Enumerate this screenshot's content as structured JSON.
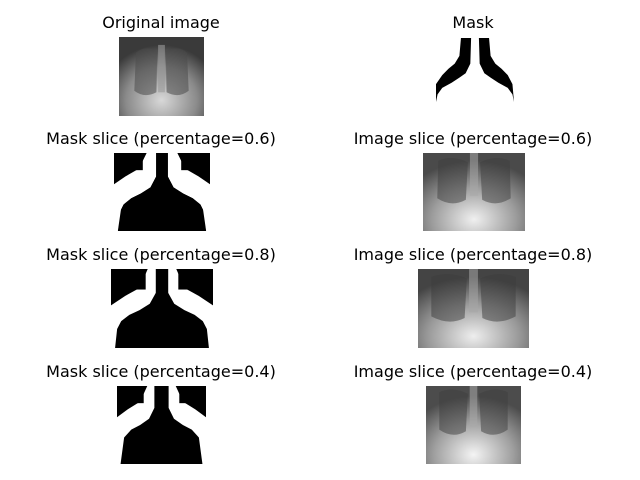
{
  "panels": [
    {
      "title": "Original image",
      "kind": "xray"
    },
    {
      "title": "Mask",
      "kind": "mask-outline"
    },
    {
      "title": "Mask slice (percentage=0.6)",
      "kind": "mask-slice"
    },
    {
      "title": "Image slice (percentage=0.6)",
      "kind": "xray"
    },
    {
      "title": "Mask slice (percentage=0.8)",
      "kind": "mask-slice"
    },
    {
      "title": "Image slice (percentage=0.8)",
      "kind": "xray"
    },
    {
      "title": "Mask slice (percentage=0.4)",
      "kind": "mask-slice"
    },
    {
      "title": "Image slice (percentage=0.4)",
      "kind": "xray"
    }
  ]
}
